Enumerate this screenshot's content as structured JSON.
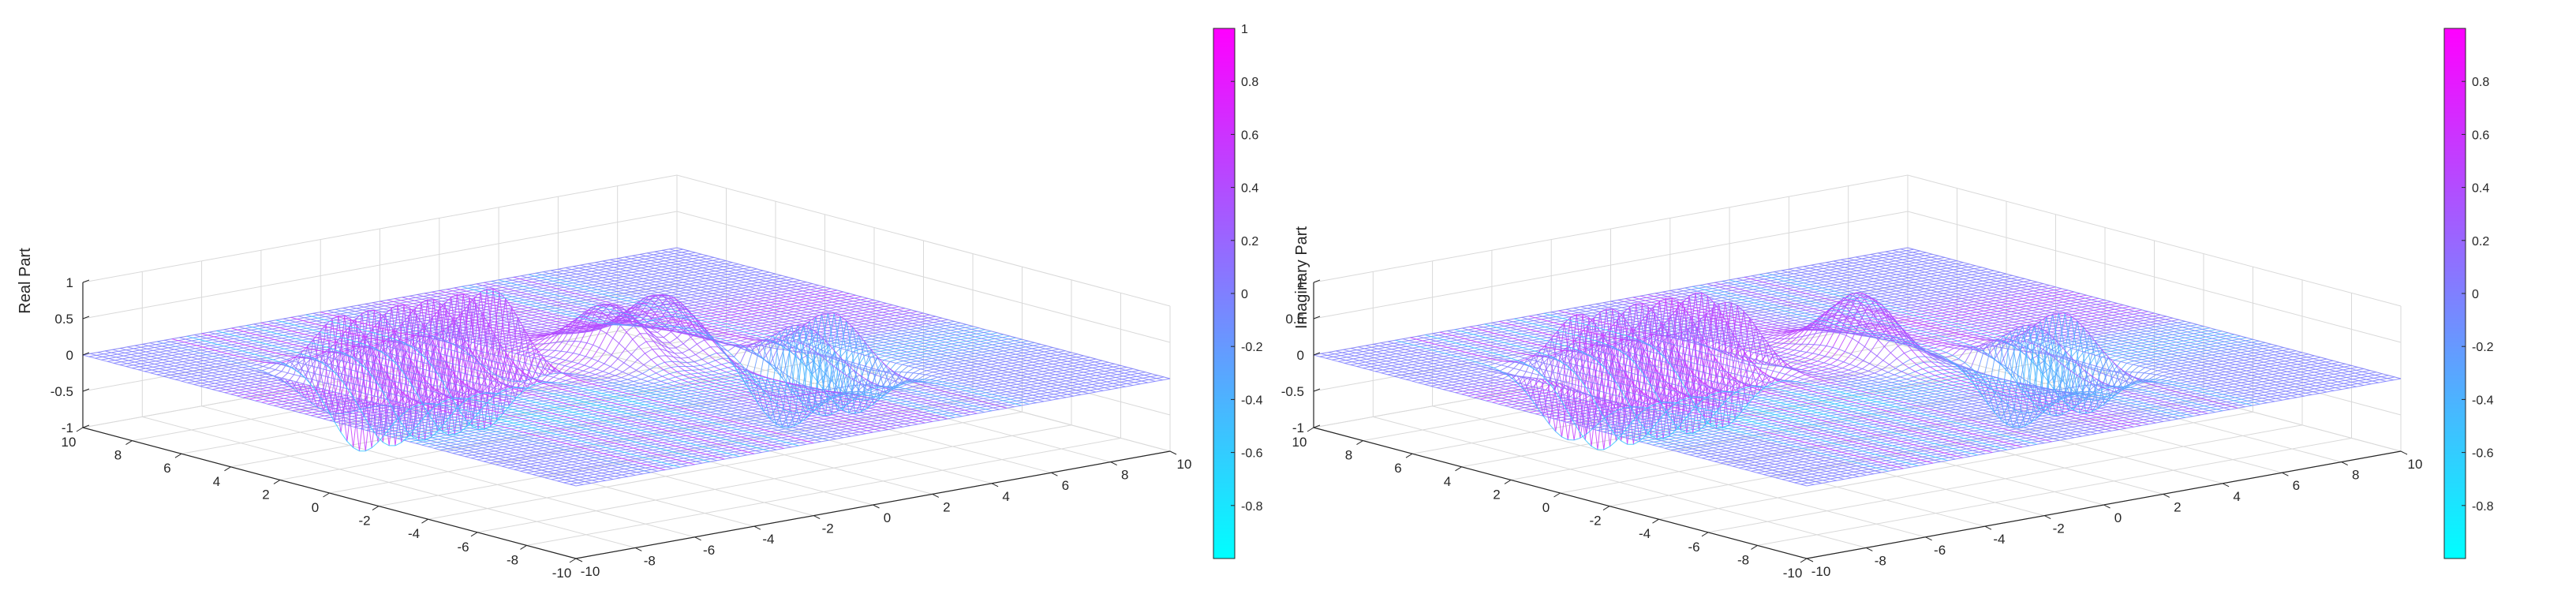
{
  "colors": {
    "colormap_low": "#00ffff",
    "colormap_high": "#ff00ff",
    "axes": "#262626",
    "grid": "#d9d9d9"
  },
  "chart_data": [
    {
      "type": "surface-mesh",
      "title": "",
      "xlabel": "",
      "ylabel": "",
      "zlabel": "Real Part",
      "xlim": [
        -10,
        10
      ],
      "ylim": [
        -10,
        10
      ],
      "zlim": [
        -1,
        1
      ],
      "x_ticks": [
        -10,
        -8,
        -6,
        -4,
        -2,
        0,
        2,
        4,
        6,
        8,
        10
      ],
      "y_ticks": [
        -10,
        -8,
        -6,
        -4,
        -2,
        0,
        2,
        4,
        6,
        8,
        10
      ],
      "z_ticks": [
        -1,
        -0.5,
        0,
        0.5,
        1
      ],
      "x_tick_labels": [
        "-10",
        "-8",
        "-6",
        "-4",
        "-2",
        "0",
        "2",
        "4",
        "6",
        "8",
        "10"
      ],
      "y_tick_labels": [
        "-10",
        "-8",
        "-6",
        "-4",
        "-2",
        "0",
        "2",
        "4",
        "6",
        "8",
        "10"
      ],
      "z_tick_labels": [
        "-1",
        "-0.5",
        "0",
        "0.5",
        "1"
      ],
      "grid": true,
      "colormap": "cool",
      "colorbar": {
        "location": "right",
        "range": [
          -1,
          1
        ],
        "ticks": [
          -0.8,
          -0.6,
          -0.4,
          -0.2,
          0,
          0.2,
          0.4,
          0.6,
          0.8,
          1
        ],
        "tick_labels": [
          "-0.8",
          "-0.6",
          "-0.4",
          "-0.2",
          "0",
          "0.2",
          "0.4",
          "0.6",
          "0.8",
          "1"
        ]
      },
      "surface_features": [
        {
          "shape": "ripple",
          "x_range": [
            -7,
            -2
          ],
          "y": 3,
          "amplitude": 0.95,
          "wavelength": 1.0
        },
        {
          "shape": "bump",
          "x": 0.3,
          "y": 1,
          "amplitude": 0.75
        },
        {
          "shape": "bump",
          "x": 2.1,
          "y": 1,
          "amplitude": 0.75
        },
        {
          "shape": "spike",
          "x": 3.4,
          "y": -3,
          "amplitude": 0.95
        },
        {
          "shape": "spike",
          "x": 4.5,
          "y": -3,
          "amplitude": 0.95
        },
        {
          "shape": "dip",
          "x": 2.9,
          "y": -3,
          "amplitude": -0.95
        },
        {
          "shape": "dip",
          "x": 3.95,
          "y": -3,
          "amplitude": -0.95
        },
        {
          "shape": "dip",
          "x": 5.0,
          "y": -3,
          "amplitude": -0.9
        }
      ]
    },
    {
      "type": "surface-mesh",
      "title": "",
      "xlabel": "",
      "ylabel": "",
      "zlabel": "Imaginary Part",
      "xlim": [
        -10,
        10
      ],
      "ylim": [
        -10,
        10
      ],
      "zlim": [
        -1,
        1
      ],
      "x_ticks": [
        -10,
        -8,
        -6,
        -4,
        -2,
        0,
        2,
        4,
        6,
        8,
        10
      ],
      "y_ticks": [
        -10,
        -8,
        -6,
        -4,
        -2,
        0,
        2,
        4,
        6,
        8,
        10
      ],
      "z_ticks": [
        -1,
        -0.5,
        0,
        0.5,
        1
      ],
      "x_tick_labels": [
        "-10",
        "-8",
        "-6",
        "-4",
        "-2",
        "0",
        "2",
        "4",
        "6",
        "8",
        "10"
      ],
      "y_tick_labels": [
        "-10",
        "-8",
        "-6",
        "-4",
        "-2",
        "0",
        "2",
        "4",
        "6",
        "8",
        "10"
      ],
      "z_tick_labels": [
        "-1",
        "-0.5",
        "0",
        "0.5",
        "1"
      ],
      "grid": true,
      "colormap": "cool",
      "colorbar": {
        "location": "right",
        "range": [
          -1,
          1
        ],
        "ticks": [
          -0.8,
          -0.6,
          -0.4,
          -0.2,
          0,
          0.2,
          0.4,
          0.6,
          0.8
        ],
        "tick_labels": [
          "-0.8",
          "-0.6",
          "-0.4",
          "-0.2",
          "0",
          "0.2",
          "0.4",
          "0.6",
          "0.8"
        ]
      },
      "surface_features": [
        {
          "shape": "ripple",
          "x_range": [
            -7,
            -2
          ],
          "y": 3,
          "amplitude": 0.95,
          "wavelength": 1.0,
          "phase": "sine"
        },
        {
          "shape": "bump",
          "x": 1.0,
          "y": 1,
          "amplitude": 0.85
        },
        {
          "shape": "spike",
          "x": 3.4,
          "y": -3,
          "amplitude": 0.95
        },
        {
          "shape": "spike",
          "x": 4.5,
          "y": -3,
          "amplitude": 0.95
        },
        {
          "shape": "dip",
          "x": 2.9,
          "y": -3,
          "amplitude": -0.95
        },
        {
          "shape": "dip",
          "x": 3.95,
          "y": -3,
          "amplitude": -0.95
        },
        {
          "shape": "dip",
          "x": 5.0,
          "y": -3,
          "amplitude": -0.9
        }
      ]
    }
  ]
}
